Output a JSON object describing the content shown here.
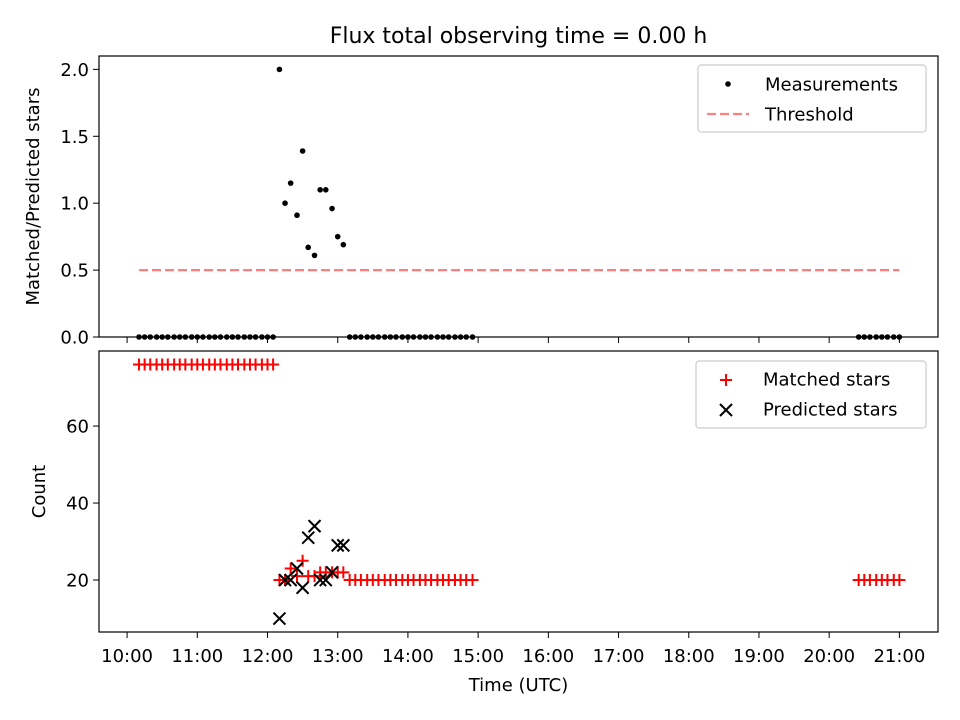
{
  "chart_data": {
    "type": "scatter",
    "title": "Flux total observing time = 0.00 h",
    "x_axis": {
      "label": "Time (UTC)",
      "range_hours": [
        9.6,
        21.55
      ],
      "ticks": [
        {
          "value": 10,
          "label": "10:00"
        },
        {
          "value": 11,
          "label": "11:00"
        },
        {
          "value": 12,
          "label": "12:00"
        },
        {
          "value": 13,
          "label": "13:00"
        },
        {
          "value": 14,
          "label": "14:00"
        },
        {
          "value": 15,
          "label": "15:00"
        },
        {
          "value": 16,
          "label": "16:00"
        },
        {
          "value": 17,
          "label": "17:00"
        },
        {
          "value": 18,
          "label": "18:00"
        },
        {
          "value": 19,
          "label": "19:00"
        },
        {
          "value": 20,
          "label": "20:00"
        },
        {
          "value": 21,
          "label": "21:00"
        }
      ]
    },
    "panels": [
      {
        "ylabel": "Matched/Predicted stars",
        "ylim": [
          0,
          2.1
        ],
        "yticks": [
          {
            "value": 0.0,
            "label": "0.0"
          },
          {
            "value": 0.5,
            "label": "0.5"
          },
          {
            "value": 1.0,
            "label": "1.0"
          },
          {
            "value": 1.5,
            "label": "1.5"
          },
          {
            "value": 2.0,
            "label": "2.0"
          }
        ],
        "legend_position": "top-right",
        "series": [
          {
            "name": "Measurements",
            "marker": "dot",
            "color": "#000000",
            "x": [
              10.17,
              10.25,
              10.33,
              10.42,
              10.5,
              10.58,
              10.67,
              10.75,
              10.83,
              10.92,
              11.0,
              11.08,
              11.17,
              11.25,
              11.33,
              11.42,
              11.5,
              11.58,
              11.67,
              11.75,
              11.83,
              11.92,
              12.0,
              12.08,
              12.17,
              12.25,
              12.33,
              12.42,
              12.5,
              12.58,
              12.67,
              12.75,
              12.83,
              12.92,
              13.0,
              13.08,
              13.17,
              13.25,
              13.33,
              13.42,
              13.5,
              13.58,
              13.67,
              13.75,
              13.83,
              13.92,
              14.0,
              14.08,
              14.17,
              14.25,
              14.33,
              14.42,
              14.5,
              14.58,
              14.67,
              14.75,
              14.83,
              14.92,
              20.42,
              20.5,
              20.58,
              20.67,
              20.75,
              20.83,
              20.92,
              21.0
            ],
            "y": [
              0,
              0,
              0,
              0,
              0,
              0,
              0,
              0,
              0,
              0,
              0,
              0,
              0,
              0,
              0,
              0,
              0,
              0,
              0,
              0,
              0,
              0,
              0,
              0,
              2.0,
              1.0,
              1.15,
              0.91,
              1.39,
              0.67,
              0.61,
              1.1,
              1.1,
              0.96,
              0.75,
              0.69,
              0,
              0,
              0,
              0,
              0,
              0,
              0,
              0,
              0,
              0,
              0,
              0,
              0,
              0,
              0,
              0,
              0,
              0,
              0,
              0,
              0,
              0,
              0,
              0,
              0,
              0,
              0,
              0,
              0,
              0
            ]
          },
          {
            "name": "Threshold",
            "marker": "dashed-line",
            "color": "#ff7f7f",
            "x": [
              10.17,
              21.0
            ],
            "y": [
              0.5,
              0.5
            ]
          }
        ]
      },
      {
        "ylabel": "Count",
        "ylim": [
          6.5,
          79.5
        ],
        "yticks": [
          {
            "value": 20,
            "label": "20"
          },
          {
            "value": 40,
            "label": "40"
          },
          {
            "value": 60,
            "label": "60"
          }
        ],
        "legend_position": "top-right",
        "series": [
          {
            "name": "Matched stars",
            "marker": "plus",
            "color": "#ff0000",
            "x": [
              10.17,
              10.25,
              10.33,
              10.42,
              10.5,
              10.58,
              10.67,
              10.75,
              10.83,
              10.92,
              11.0,
              11.08,
              11.17,
              11.25,
              11.33,
              11.42,
              11.5,
              11.58,
              11.67,
              11.75,
              11.83,
              11.92,
              12.0,
              12.08,
              12.17,
              12.25,
              12.33,
              12.42,
              12.5,
              12.58,
              12.67,
              12.75,
              12.83,
              12.92,
              13.0,
              13.08,
              13.17,
              13.25,
              13.33,
              13.42,
              13.5,
              13.58,
              13.67,
              13.75,
              13.83,
              13.92,
              14.0,
              14.08,
              14.17,
              14.25,
              14.33,
              14.42,
              14.5,
              14.58,
              14.67,
              14.75,
              14.83,
              14.92,
              20.42,
              20.5,
              20.58,
              20.67,
              20.75,
              20.83,
              20.92,
              21.0
            ],
            "y": [
              76,
              76,
              76,
              76,
              76,
              76,
              76,
              76,
              76,
              76,
              76,
              76,
              76,
              76,
              76,
              76,
              76,
              76,
              76,
              76,
              76,
              76,
              76,
              76,
              20,
              20,
              23,
              21,
              25,
              21,
              21,
              22,
              22,
              22,
              22,
              22,
              20,
              20,
              20,
              20,
              20,
              20,
              20,
              20,
              20,
              20,
              20,
              20,
              20,
              20,
              20,
              20,
              20,
              20,
              20,
              20,
              20,
              20,
              20,
              20,
              20,
              20,
              20,
              20,
              20,
              20
            ]
          },
          {
            "name": "Predicted stars",
            "marker": "x",
            "color": "#000000",
            "x": [
              12.17,
              12.25,
              12.33,
              12.42,
              12.5,
              12.58,
              12.67,
              12.75,
              12.83,
              12.92,
              13.0,
              13.08
            ],
            "y": [
              10,
              20,
              20,
              23,
              18,
              31,
              34,
              20,
              20,
              22,
              29,
              29
            ]
          }
        ]
      }
    ]
  }
}
